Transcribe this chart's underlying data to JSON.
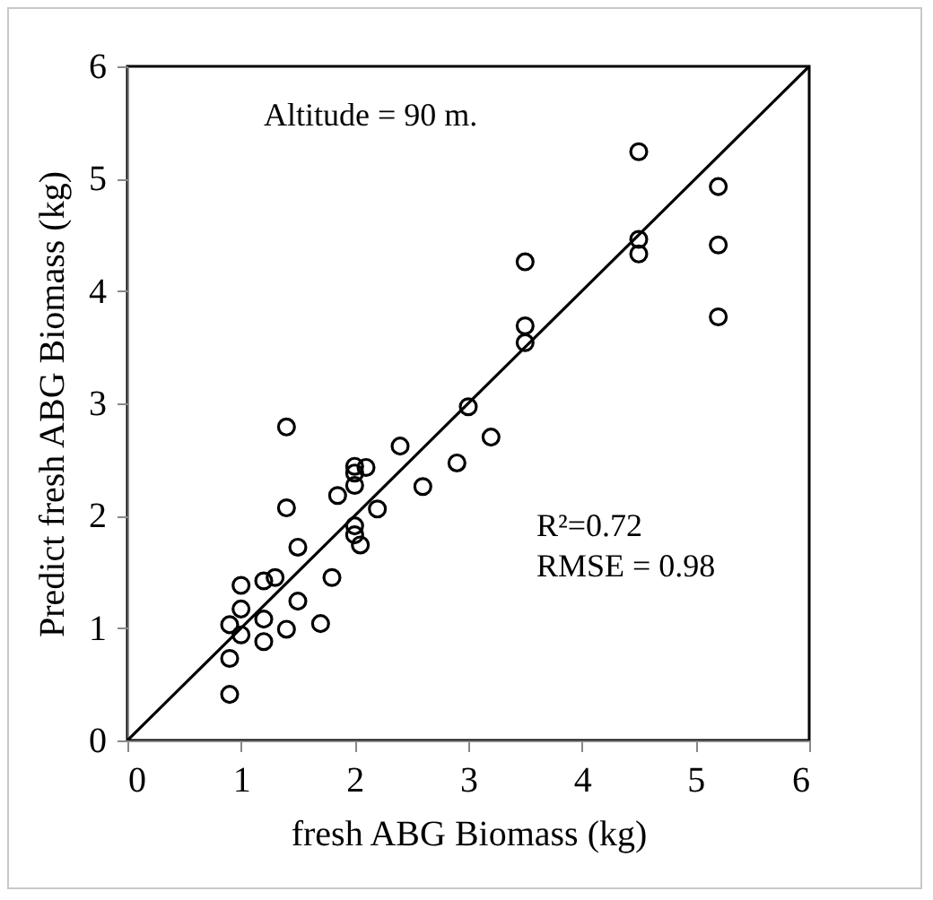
{
  "chart_data": {
    "type": "scatter",
    "xlabel": "fresh ABG Biomass  (kg)",
    "ylabel": "Predict fresh ABG Biomass (kg)",
    "xlim": [
      0,
      6
    ],
    "ylim": [
      0,
      6
    ],
    "xticks": [
      0,
      1,
      2,
      3,
      4,
      5,
      6
    ],
    "yticks": [
      0,
      1,
      2,
      3,
      4,
      5,
      6
    ],
    "grid": false,
    "marker": "circle",
    "annotations": [
      "Altitude = 90 m.",
      "R²=0.72",
      "RMSE = 0.98"
    ],
    "series": [
      {
        "color": "#000000",
        "x": [
          0.9,
          0.9,
          0.9,
          1.0,
          1.0,
          1.0,
          1.2,
          1.2,
          1.2,
          1.3,
          1.4,
          1.4,
          1.4,
          1.5,
          1.5,
          1.7,
          1.8,
          1.85,
          2.0,
          2.0,
          2.05,
          2.0,
          2.0,
          2.0,
          2.1,
          2.2,
          2.4,
          2.6,
          2.9,
          3.0,
          3.2,
          3.5,
          3.5,
          3.5,
          4.5,
          4.5,
          4.5,
          5.2,
          5.2,
          5.2
        ],
        "values": [
          0.41,
          0.73,
          1.03,
          0.94,
          1.17,
          1.38,
          0.88,
          1.08,
          1.42,
          1.45,
          0.99,
          2.07,
          2.79,
          1.24,
          1.72,
          1.04,
          1.45,
          2.18,
          1.91,
          1.83,
          1.74,
          2.44,
          2.38,
          2.27,
          2.43,
          2.06,
          2.62,
          2.26,
          2.47,
          2.97,
          2.7,
          3.69,
          3.54,
          4.26,
          5.24,
          4.46,
          4.33,
          4.93,
          4.41,
          3.77
        ]
      },
      {
        "type": "line",
        "marker": "none",
        "color": "#000000",
        "x": [
          0,
          6
        ],
        "values": [
          0,
          6
        ]
      }
    ]
  }
}
